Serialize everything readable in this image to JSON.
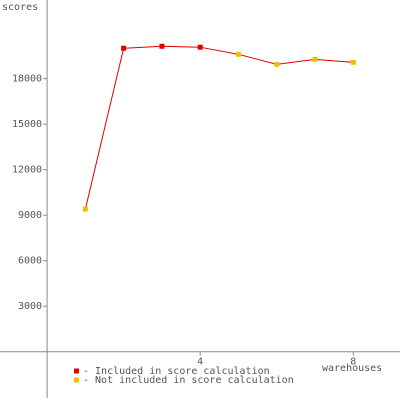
{
  "chart_data": {
    "type": "line",
    "y_label": "scores",
    "x_label": "warehouses",
    "x": [
      1,
      2,
      3,
      4,
      5,
      6,
      7,
      8
    ],
    "line_color": "#e00000",
    "series": [
      {
        "name": "- Included in score calculation",
        "color": "#e00000",
        "values": [
          null,
          20000,
          20130,
          20070,
          null,
          null,
          null,
          null
        ]
      },
      {
        "name": "- Not included in score calculation",
        "color": "#f0c000",
        "values": [
          9400,
          null,
          null,
          null,
          19600,
          18940,
          19270,
          19070
        ]
      }
    ],
    "xlim": [
      -1.23,
      9.22
    ],
    "xticks": [
      4,
      8
    ],
    "ylim": [
      -3180,
      23180
    ],
    "yticks": [
      3000,
      6000,
      9000,
      12000,
      15000,
      18000
    ]
  }
}
